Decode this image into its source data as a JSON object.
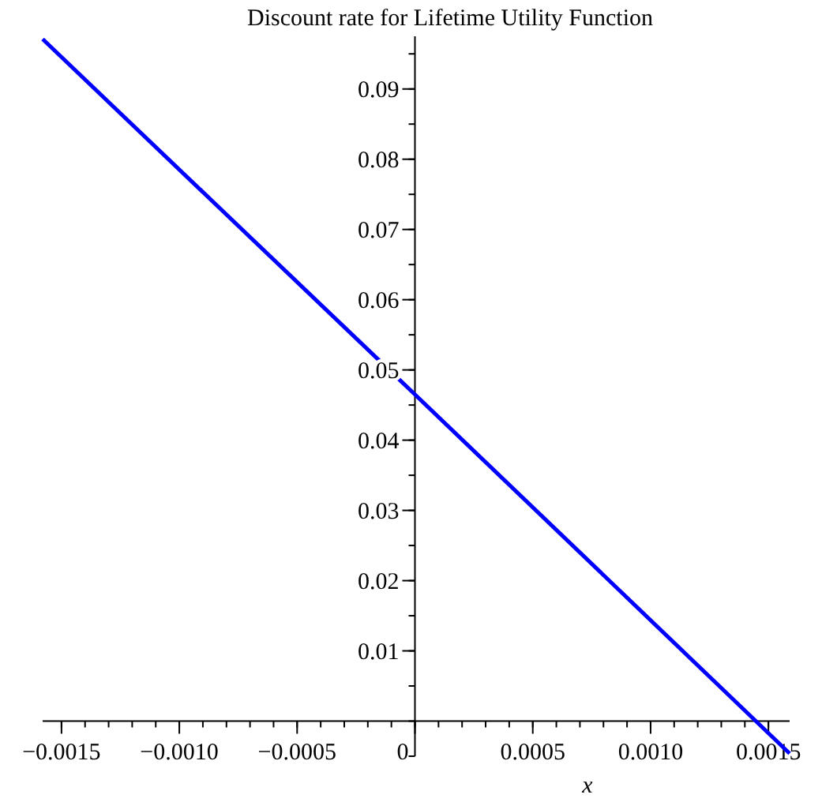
{
  "chart_data": {
    "type": "line",
    "title": "Discount rate for Lifetime Utility Function",
    "xlabel": "x",
    "x": [
      -0.00158,
      0,
      0.00159
    ],
    "series": [
      {
        "color": "#0000ff",
        "values": [
          0.0971,
          0.0465,
          -0.0046
        ]
      }
    ],
    "xlim": [
      -0.00158,
      0.00159
    ],
    "ylim": [
      -0.005,
      0.0975
    ],
    "xticks": [
      {
        "value": -0.0015,
        "label": "−0.0015"
      },
      {
        "value": -0.001,
        "label": "−0.0010"
      },
      {
        "value": -0.0005,
        "label": "−0.0005"
      },
      {
        "value": 0,
        "label": "0"
      },
      {
        "value": 0.0005,
        "label": "0.0005"
      },
      {
        "value": 0.001,
        "label": "0.0010"
      },
      {
        "value": 0.0015,
        "label": "0.0015"
      }
    ],
    "yticks": [
      {
        "value": 0.01,
        "label": "0.01"
      },
      {
        "value": 0.02,
        "label": "0.02"
      },
      {
        "value": 0.03,
        "label": "0.03"
      },
      {
        "value": 0.04,
        "label": "0.04"
      },
      {
        "value": 0.05,
        "label": "0.05"
      },
      {
        "value": 0.06,
        "label": "0.06"
      },
      {
        "value": 0.07,
        "label": "0.07"
      },
      {
        "value": 0.08,
        "label": "0.08"
      },
      {
        "value": 0.09,
        "label": "0.09"
      }
    ],
    "marker": "none",
    "line_style": "solid"
  }
}
